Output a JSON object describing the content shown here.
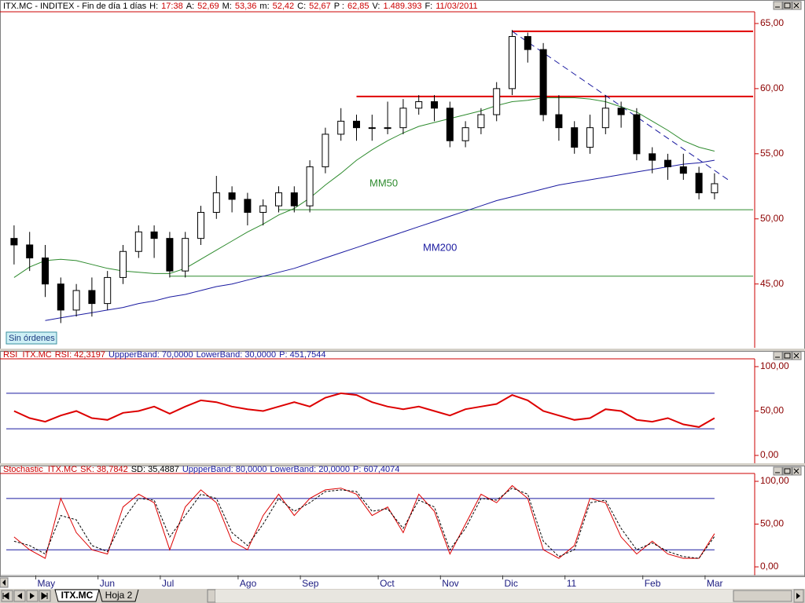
{
  "chart_data": [
    {
      "type": "candlestick",
      "title_parts": [
        {
          "text": "ITX.MC - INDITEX - Fin de día 1 días",
          "color": "#000000"
        },
        {
          "text": "H:",
          "color": "#000000"
        },
        {
          "text": "17:38",
          "color": "#cc0000"
        },
        {
          "text": "A:",
          "color": "#000000"
        },
        {
          "text": "52,69",
          "color": "#cc0000"
        },
        {
          "text": "M:",
          "color": "#000000"
        },
        {
          "text": "53,36",
          "color": "#cc0000"
        },
        {
          "text": "m:",
          "color": "#000000"
        },
        {
          "text": "52,42",
          "color": "#cc0000"
        },
        {
          "text": "C:",
          "color": "#000000"
        },
        {
          "text": "52,67",
          "color": "#cc0000"
        },
        {
          "text": "P :",
          "color": "#000000"
        },
        {
          "text": "62,85",
          "color": "#cc0000"
        },
        {
          "text": "V:",
          "color": "#000000"
        },
        {
          "text": "1.489.393",
          "color": "#cc0000"
        },
        {
          "text": "F:",
          "color": "#000000"
        },
        {
          "text": "11/03/2011",
          "color": "#cc0000"
        }
      ],
      "categories": [
        null,
        null,
        "May",
        null,
        null,
        null,
        "Jun",
        null,
        null,
        null,
        "Jul",
        null,
        null,
        null,
        null,
        "Ago",
        null,
        null,
        null,
        "Sep",
        null,
        null,
        null,
        null,
        "Oct",
        null,
        null,
        null,
        "Nov",
        null,
        null,
        null,
        "Dic",
        null,
        null,
        null,
        "11",
        null,
        null,
        null,
        null,
        "Feb",
        null,
        null,
        null,
        "Mar"
      ],
      "open": [
        48.5,
        48.0,
        47.0,
        45.0,
        43.0,
        44.5,
        43.5,
        45.5,
        47.5,
        49.0,
        48.5,
        46.0,
        48.5,
        50.5,
        52.0,
        51.5,
        50.5,
        51.0,
        52.0,
        51.0,
        54.0,
        56.5,
        57.5,
        57.0,
        57.0,
        57.0,
        58.5,
        59.0,
        58.5,
        56.0,
        57.0,
        58.0,
        60.0,
        64.0,
        63.0,
        58.0,
        57.0,
        55.5,
        57.0,
        58.5,
        58.0,
        55.0,
        54.5,
        54.0,
        53.5,
        52.0
      ],
      "high": [
        49.5,
        49.0,
        48.0,
        45.5,
        45.0,
        45.5,
        46.0,
        48.0,
        49.5,
        49.5,
        49.0,
        49.0,
        51.0,
        53.3,
        52.5,
        52.0,
        51.5,
        52.5,
        52.5,
        54.5,
        57.0,
        58.5,
        58.0,
        58.0,
        59.0,
        59.2,
        59.5,
        59.5,
        59.0,
        57.5,
        58.5,
        60.5,
        64.5,
        64.3,
        63.5,
        59.5,
        57.5,
        58.0,
        59.5,
        59.0,
        58.5,
        55.5,
        55.0,
        55.0,
        54.0,
        53.5
      ],
      "low": [
        46.5,
        46.0,
        44.0,
        42.0,
        42.5,
        42.5,
        43.0,
        45.0,
        47.0,
        47.0,
        45.5,
        45.5,
        48.0,
        50.0,
        50.5,
        49.5,
        49.5,
        50.5,
        50.5,
        50.5,
        53.5,
        56.0,
        56.0,
        56.0,
        56.5,
        56.5,
        58.0,
        57.5,
        55.5,
        55.5,
        56.5,
        57.5,
        59.5,
        62.0,
        57.5,
        56.0,
        55.0,
        55.0,
        56.5,
        57.0,
        54.5,
        53.5,
        53.0,
        53.0,
        51.5,
        51.5
      ],
      "close": [
        48.0,
        47.0,
        45.0,
        43.0,
        44.5,
        43.5,
        45.5,
        47.5,
        49.0,
        48.5,
        46.0,
        48.5,
        50.5,
        52.0,
        51.5,
        50.5,
        51.0,
        52.0,
        51.0,
        54.0,
        56.5,
        57.5,
        57.0,
        57.0,
        57.0,
        58.5,
        59.0,
        58.5,
        56.0,
        57.0,
        58.0,
        60.0,
        64.0,
        63.0,
        58.0,
        57.0,
        55.5,
        57.0,
        58.5,
        58.0,
        55.0,
        54.5,
        54.0,
        53.5,
        52.0,
        52.7
      ],
      "up_color": "#ffffff",
      "down_color": "#000000",
      "lines": [
        {
          "name": "MM50",
          "color": "#2e8b2e",
          "values": [
            45.5,
            46.3,
            46.8,
            46.9,
            46.8,
            46.5,
            46.2,
            46.0,
            45.9,
            45.8,
            45.8,
            46.2,
            46.9,
            47.6,
            48.3,
            49.0,
            49.6,
            50.3,
            50.8,
            51.6,
            52.6,
            53.5,
            54.5,
            55.3,
            56.0,
            56.6,
            57.1,
            57.4,
            57.7,
            58.0,
            58.3,
            58.7,
            59.0,
            59.1,
            59.3,
            59.3,
            59.3,
            59.2,
            59.0,
            58.6,
            58.2,
            57.5,
            56.8,
            56.0,
            55.5,
            55.2
          ]
        },
        {
          "name": "MM200",
          "color": "#1a1aa0",
          "values": [
            null,
            null,
            42.2,
            42.4,
            42.6,
            42.8,
            43.0,
            43.2,
            43.5,
            43.7,
            44.0,
            44.2,
            44.5,
            44.8,
            45.0,
            45.3,
            45.6,
            45.9,
            46.2,
            46.6,
            47.0,
            47.4,
            47.8,
            48.2,
            48.6,
            49.0,
            49.4,
            49.8,
            50.2,
            50.6,
            51.0,
            51.4,
            51.7,
            52.0,
            52.3,
            52.6,
            52.8,
            53.0,
            53.2,
            53.4,
            53.6,
            53.8,
            54.0,
            54.2,
            54.3,
            54.5
          ]
        }
      ],
      "hlines": [
        {
          "value": 64.4,
          "color": "#e00000",
          "start": 32
        },
        {
          "value": 59.4,
          "color": "#e00000",
          "start": 22
        },
        {
          "value": 50.7,
          "color": "#2e8b2e",
          "start": 17
        },
        {
          "value": 45.6,
          "color": "#2e8b2e",
          "start": 10
        }
      ],
      "trendline": {
        "x": [
          32,
          46
        ],
        "y": [
          64.4,
          52.9
        ],
        "color": "#1a1aa0"
      },
      "badge": "Sin órdenes",
      "ylim": [
        40.1,
        65.9
      ],
      "yticks": [
        {
          "value": 45,
          "label": "45,00"
        },
        {
          "value": 50,
          "label": "50,00"
        },
        {
          "value": 55,
          "label": "55,00"
        },
        {
          "value": 60,
          "label": "60,00"
        },
        {
          "value": 65,
          "label": "65,00"
        }
      ]
    },
    {
      "type": "line",
      "title_parts": [
        {
          "text": "RSI_ITX.MC",
          "color": "#cc0000"
        },
        {
          "text": "RSI: 42,3197",
          "color": "#cc0000"
        },
        {
          "text": "UppperBand: 70,0000",
          "color": "#1a1aa0"
        },
        {
          "text": "LowerBand: 30,0000",
          "color": "#1a1aa0"
        },
        {
          "text": "P: 451,7544",
          "color": "#1a1aa0"
        }
      ],
      "series": [
        {
          "color": "#dd0000",
          "values": [
            50,
            42,
            38,
            45,
            50,
            42,
            40,
            48,
            50,
            55,
            47,
            55,
            62,
            60,
            55,
            52,
            50,
            55,
            60,
            55,
            65,
            70,
            68,
            60,
            55,
            52,
            55,
            50,
            45,
            52,
            55,
            58,
            68,
            62,
            50,
            45,
            40,
            42,
            52,
            50,
            40,
            38,
            42,
            35,
            32,
            42
          ]
        }
      ],
      "bands": [
        {
          "value": 70,
          "color": "#1a1aa0"
        },
        {
          "value": 30,
          "color": "#1a1aa0"
        }
      ],
      "ylim": [
        -8.8,
        108.8
      ],
      "yticks": [
        {
          "value": 0,
          "label": "0,00"
        },
        {
          "value": 50,
          "label": "50,00"
        },
        {
          "value": 100,
          "label": "100,00"
        }
      ]
    },
    {
      "type": "line",
      "title_parts": [
        {
          "text": "Stochastic_ITX.MC",
          "color": "#cc0000"
        },
        {
          "text": "SK: 38,7842",
          "color": "#cc0000"
        },
        {
          "text": "SD: 35,4887",
          "color": "#000000"
        },
        {
          "text": "UppperBand: 80,0000",
          "color": "#1a1aa0"
        },
        {
          "text": "LowerBand: 20,0000",
          "color": "#1a1aa0"
        },
        {
          "text": "P: 607,4074",
          "color": "#1a1aa0"
        }
      ],
      "series": [
        {
          "color": "#dd0000",
          "dash": false,
          "values": [
            35,
            20,
            10,
            80,
            40,
            20,
            15,
            70,
            85,
            75,
            20,
            70,
            90,
            75,
            30,
            20,
            60,
            85,
            60,
            80,
            90,
            92,
            85,
            60,
            70,
            40,
            85,
            65,
            15,
            50,
            85,
            75,
            95,
            80,
            20,
            10,
            25,
            80,
            75,
            35,
            15,
            30,
            15,
            10,
            10,
            38.8
          ]
        },
        {
          "color": "#000000",
          "dash": true,
          "values": [
            30,
            25,
            15,
            60,
            55,
            25,
            18,
            55,
            80,
            78,
            35,
            60,
            85,
            80,
            40,
            25,
            50,
            80,
            65,
            75,
            88,
            90,
            88,
            65,
            68,
            45,
            78,
            70,
            20,
            45,
            80,
            78,
            92,
            85,
            30,
            12,
            20,
            75,
            78,
            45,
            20,
            28,
            18,
            12,
            10,
            35.5
          ]
        }
      ],
      "bands": [
        {
          "value": 80,
          "color": "#1a1aa0"
        },
        {
          "value": 20,
          "color": "#1a1aa0"
        }
      ],
      "ylim": [
        -10.1,
        109.2
      ],
      "yticks": [
        {
          "value": 0,
          "label": "0,00"
        },
        {
          "value": 50,
          "label": "50,00"
        },
        {
          "value": 100,
          "label": "100,00"
        }
      ]
    }
  ],
  "tabs": [
    "ITX.MC",
    "Hoja 2"
  ]
}
